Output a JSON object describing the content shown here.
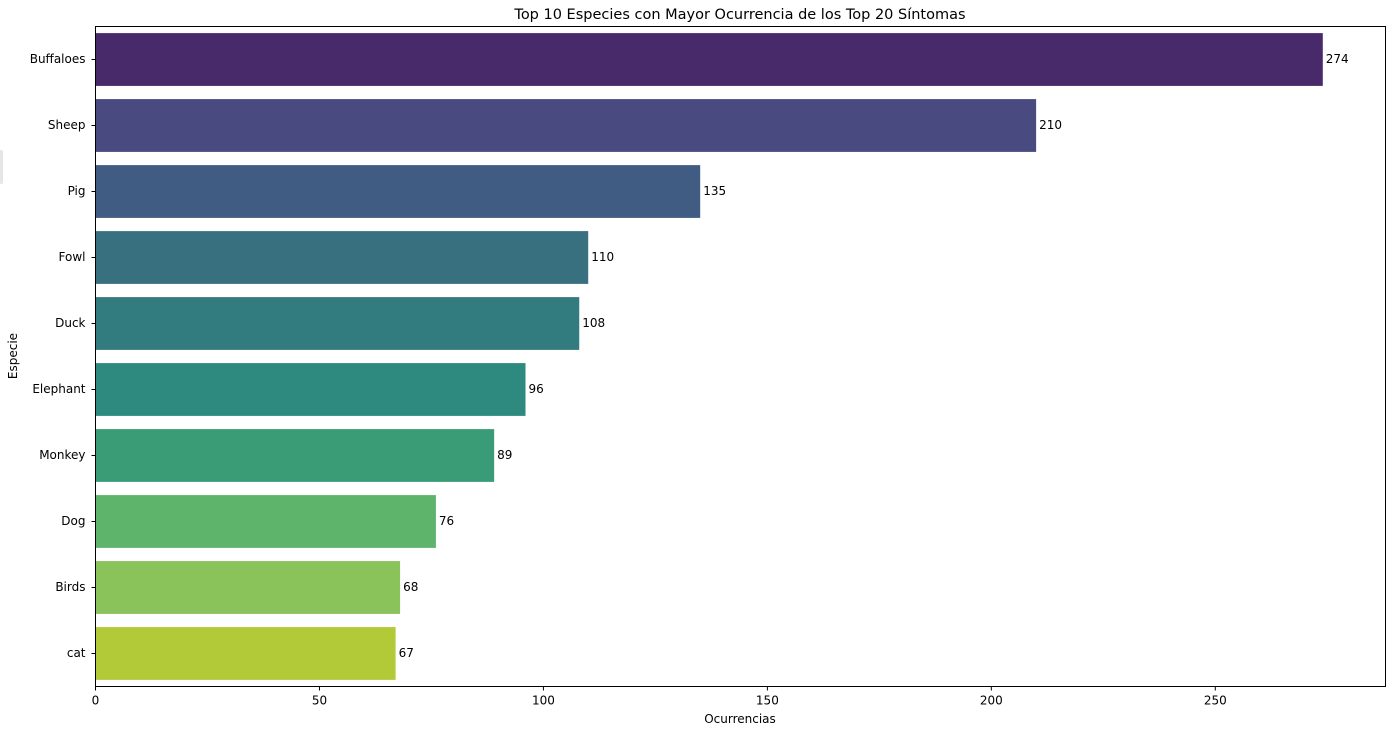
{
  "chart_data": {
    "type": "bar",
    "orientation": "horizontal",
    "title": "Top 10 Especies con Mayor Ocurrencia de los Top 20 Síntomas",
    "xlabel": "Ocurrencias",
    "ylabel": "Especie",
    "categories": [
      "Buffaloes",
      "Sheep",
      "Pig",
      "Fowl",
      "Duck",
      "Elephant",
      "Monkey",
      "Dog",
      "Birds",
      "cat"
    ],
    "values": [
      274,
      210,
      135,
      110,
      108,
      96,
      89,
      76,
      68,
      67
    ],
    "data_labels": [
      "274",
      "210",
      "135",
      "110",
      "108",
      "96",
      "89",
      "76",
      "68",
      "67"
    ],
    "colors": [
      "#482a6a",
      "#494a7f",
      "#415c83",
      "#38707f",
      "#327c80",
      "#2e8a7e",
      "#3a9c76",
      "#5fb46c",
      "#89c35a",
      "#b2c938"
    ],
    "xlim": [
      0,
      288
    ],
    "xticks": [
      0,
      50,
      100,
      150,
      200,
      250
    ],
    "xtick_labels": [
      "0",
      "50",
      "100",
      "150",
      "200",
      "250"
    ],
    "grid": false,
    "legend": "none"
  }
}
